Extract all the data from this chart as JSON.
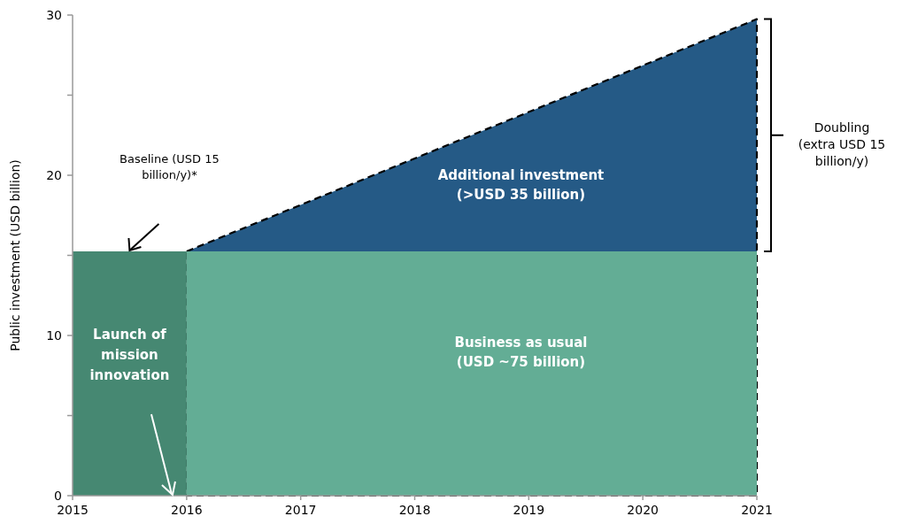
{
  "chart_data": {
    "type": "area",
    "ylabel": "Public investment (USD billion)",
    "xlim": [
      2015,
      2021
    ],
    "xticks": [
      2015,
      2016,
      2017,
      2018,
      2019,
      2020,
      2021
    ],
    "ylim": [
      0,
      30
    ],
    "yticks": [
      0,
      {
        "value": 5,
        "label": null
      },
      10,
      {
        "value": 15,
        "label": null
      },
      20,
      {
        "value": 25,
        "label": null
      },
      30
    ],
    "series": [
      {
        "color": "#255a86",
        "x": [
          2016,
          2021
        ],
        "values": [
          15.25,
          29.75
        ],
        "line_style": "dashed"
      },
      {
        "color": "#468872",
        "x": [
          2015,
          2016
        ],
        "values": [
          15.25,
          15.25
        ]
      },
      {
        "color": "#63ad95",
        "x": [
          2016,
          2021
        ],
        "values": [
          15.25,
          15.25
        ]
      }
    ],
    "annotations": [
      "Baseline (USD 15 billion/y)*",
      "Launch of mission innovation",
      "Business as usual (USD ~75 billion)",
      "Additional investment (>USD 35 billion)",
      "Doubling (extra USD 15 billion/y)"
    ]
  }
}
